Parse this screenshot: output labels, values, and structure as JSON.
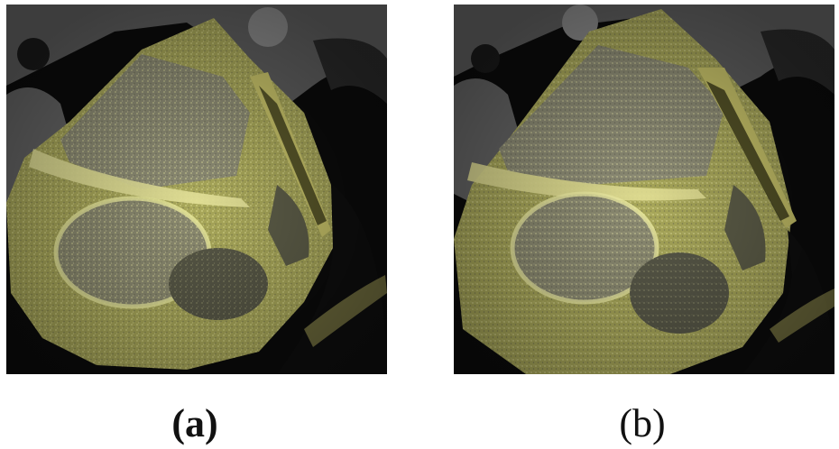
{
  "figure": {
    "captions": {
      "a": "(a)",
      "b": "(b)"
    },
    "panel_a_overlay": [
      "",
      ""
    ],
    "colors": {
      "ct_gray": "#6f6f6f",
      "dark_background": "#0b0b0b",
      "overlay_yellow": "#d8d66a",
      "bright_yellow": "#eeeea0",
      "dark_chamber": "#585848"
    }
  }
}
